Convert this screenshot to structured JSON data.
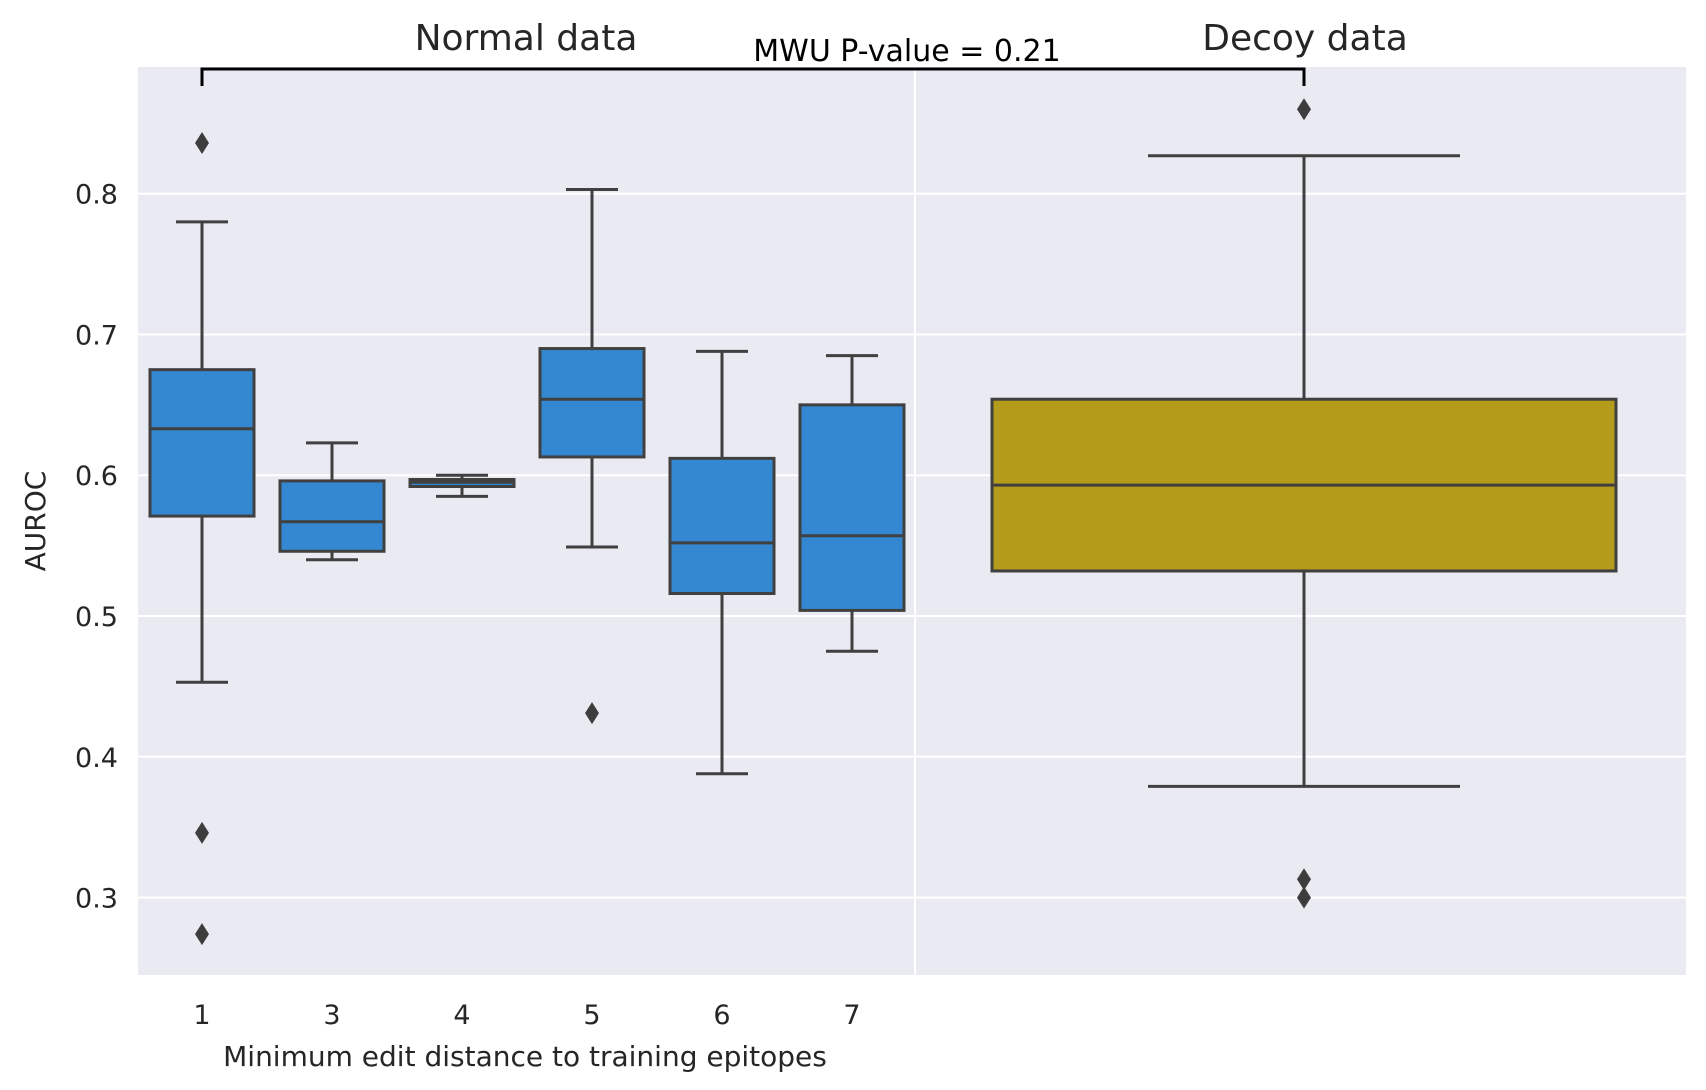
{
  "chart_data": {
    "type": "box",
    "ylabel": "AUROC",
    "xlabel": "Minimum edit distance to training epitopes",
    "ylim": [
      0.245,
      0.89
    ],
    "yticks": [
      "0.3",
      "0.4",
      "0.5",
      "0.6",
      "0.7",
      "0.8"
    ],
    "grid": true,
    "colors": {
      "normal": "#3388d1",
      "decoy": "#b59b1a",
      "background": "#eaeaf2",
      "line": "#404040"
    },
    "groups": [
      {
        "label": "Normal data",
        "type": "grouped"
      },
      {
        "label": "Decoy data",
        "type": "single"
      }
    ],
    "normal_boxes": [
      {
        "category": "1",
        "whisker_low": 0.453,
        "q1": 0.571,
        "median": 0.633,
        "q3": 0.675,
        "whisker_high": 0.78,
        "outliers": [
          0.836,
          0.346,
          0.274
        ]
      },
      {
        "category": "3",
        "whisker_low": 0.54,
        "q1": 0.546,
        "median": 0.567,
        "q3": 0.596,
        "whisker_high": 0.623,
        "outliers": []
      },
      {
        "category": "4",
        "whisker_low": 0.585,
        "q1": 0.592,
        "median": 0.595,
        "q3": 0.597,
        "whisker_high": 0.6,
        "outliers": []
      },
      {
        "category": "5",
        "whisker_low": 0.549,
        "q1": 0.613,
        "median": 0.654,
        "q3": 0.69,
        "whisker_high": 0.803,
        "outliers": [
          0.431
        ]
      },
      {
        "category": "6",
        "whisker_low": 0.388,
        "q1": 0.516,
        "median": 0.552,
        "q3": 0.612,
        "whisker_high": 0.688,
        "outliers": []
      },
      {
        "category": "7",
        "whisker_low": 0.475,
        "q1": 0.504,
        "median": 0.557,
        "q3": 0.65,
        "whisker_high": 0.685,
        "outliers": []
      }
    ],
    "decoy_box": {
      "whisker_low": 0.379,
      "q1": 0.532,
      "median": 0.593,
      "q3": 0.654,
      "whisker_high": 0.827,
      "outliers": [
        0.86,
        0.313,
        0.3
      ]
    },
    "annotation": {
      "text": "MWU P-value = 0.21"
    }
  }
}
